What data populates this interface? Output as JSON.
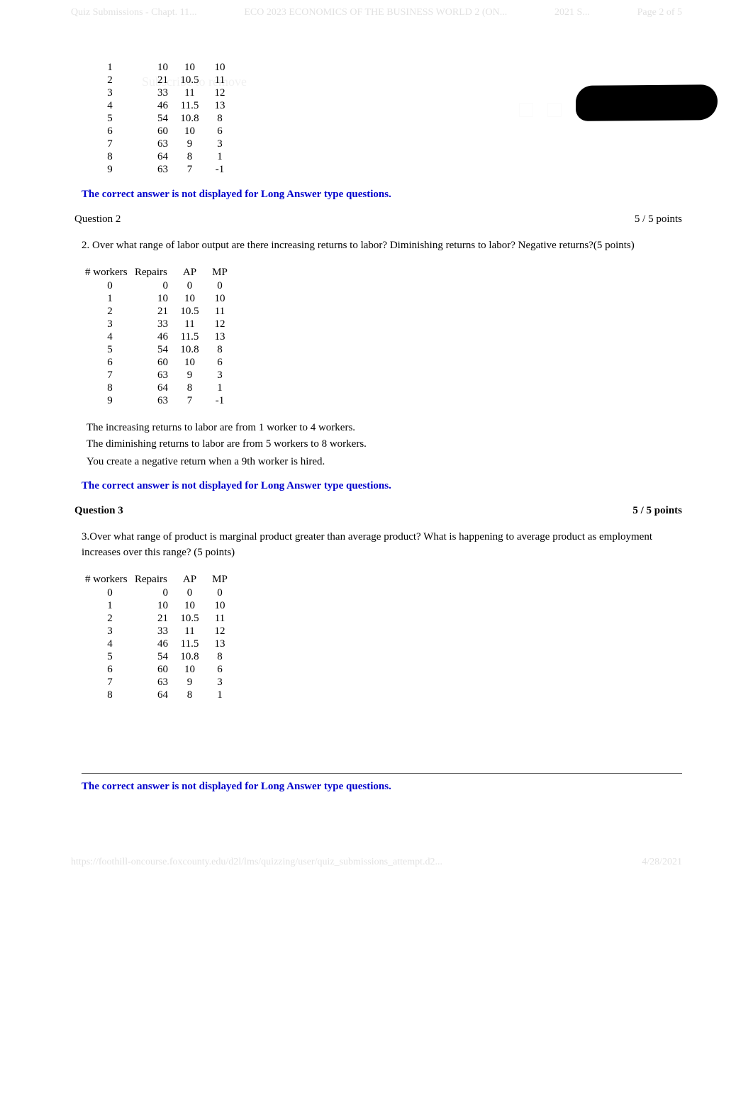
{
  "header": {
    "left": "Quiz Submissions - Chapt. 11...",
    "mid": "ECO 2023 ECONOMICS OF THE BUSINESS WORLD 2 (ON...",
    "mid2": "2021 S...",
    "right": "Page 2 of 5"
  },
  "watermark": "Subscribe to remove",
  "table1": {
    "rows": [
      {
        "w": "1",
        "r": "10",
        "ap": "10",
        "mp": "10"
      },
      {
        "w": "2",
        "r": "21",
        "ap": "10.5",
        "mp": "11"
      },
      {
        "w": "3",
        "r": "33",
        "ap": "11",
        "mp": "12"
      },
      {
        "w": "4",
        "r": "46",
        "ap": "11.5",
        "mp": "13"
      },
      {
        "w": "5",
        "r": "54",
        "ap": "10.8",
        "mp": "8"
      },
      {
        "w": "6",
        "r": "60",
        "ap": "10",
        "mp": "6"
      },
      {
        "w": "7",
        "r": "63",
        "ap": "9",
        "mp": "3"
      },
      {
        "w": "8",
        "r": "64",
        "ap": "8",
        "mp": "1"
      },
      {
        "w": "9",
        "r": "63",
        "ap": "7",
        "mp": "-1"
      }
    ]
  },
  "note": "The correct answer is not displayed for Long Answer type questions.",
  "question2": {
    "label": "Question 2",
    "points": "5 / 5 points",
    "text": "2. Over what range of labor output are there increasing returns to labor? Diminishing returns to labor? Negative returns?(5 points)",
    "headers": {
      "w": "# workers",
      "r": "Repairs",
      "ap": "AP",
      "mp": "MP"
    },
    "rows": [
      {
        "w": "0",
        "r": "0",
        "ap": "0",
        "mp": "0"
      },
      {
        "w": "1",
        "r": "10",
        "ap": "10",
        "mp": "10"
      },
      {
        "w": "2",
        "r": "21",
        "ap": "10.5",
        "mp": "11"
      },
      {
        "w": "3",
        "r": "33",
        "ap": "11",
        "mp": "12"
      },
      {
        "w": "4",
        "r": "46",
        "ap": "11.5",
        "mp": "13"
      },
      {
        "w": "5",
        "r": "54",
        "ap": "10.8",
        "mp": "8"
      },
      {
        "w": "6",
        "r": "60",
        "ap": "10",
        "mp": "6"
      },
      {
        "w": "7",
        "r": "63",
        "ap": "9",
        "mp": "3"
      },
      {
        "w": "8",
        "r": "64",
        "ap": "8",
        "mp": "1"
      },
      {
        "w": "9",
        "r": "63",
        "ap": "7",
        "mp": "-1"
      }
    ],
    "answer": {
      "line1": "The increasing returns to labor are from 1 worker to 4 workers.",
      "line2": "The diminishing returns to labor are from 5 workers to 8 workers.",
      "line3": "You create a negative return when a 9th worker is hired."
    }
  },
  "question3": {
    "label": "Question 3",
    "points": "5 / 5 points",
    "text": "3.Over what range of product is marginal product greater than average product? What is happening to average product as employment increases over this range? (5 points)",
    "headers": {
      "w": "# workers",
      "r": "Repairs",
      "ap": "AP",
      "mp": "MP"
    },
    "rows": [
      {
        "w": "0",
        "r": "0",
        "ap": "0",
        "mp": "0"
      },
      {
        "w": "1",
        "r": "10",
        "ap": "10",
        "mp": "10"
      },
      {
        "w": "2",
        "r": "21",
        "ap": "10.5",
        "mp": "11"
      },
      {
        "w": "3",
        "r": "33",
        "ap": "11",
        "mp": "12"
      },
      {
        "w": "4",
        "r": "46",
        "ap": "11.5",
        "mp": "13"
      },
      {
        "w": "5",
        "r": "54",
        "ap": "10.8",
        "mp": "8"
      },
      {
        "w": "6",
        "r": "60",
        "ap": "10",
        "mp": "6"
      },
      {
        "w": "7",
        "r": "63",
        "ap": "9",
        "mp": "3"
      },
      {
        "w": "8",
        "r": "64",
        "ap": "8",
        "mp": "1"
      }
    ]
  },
  "footer": {
    "left": "https://foothill-oncourse.foxcounty.edu/d2l/lms/quizzing/user/quiz_submissions_attempt.d2...",
    "right": "4/28/2021"
  }
}
